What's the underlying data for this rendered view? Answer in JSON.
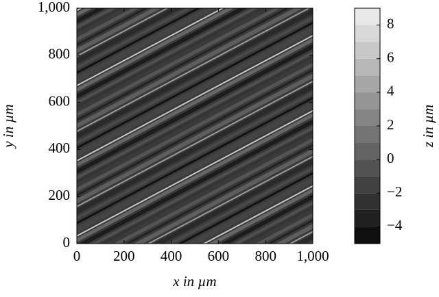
{
  "chart_data": {
    "type": "contour",
    "xlabel": "x in µm",
    "ylabel": "y in µm",
    "xlim": [
      0,
      1000
    ],
    "xticks": [
      0,
      200,
      400,
      600,
      800,
      {
        "value": 1000,
        "label": "1,000"
      }
    ],
    "ylim": [
      0,
      1000
    ],
    "yticks": [
      0,
      200,
      400,
      600,
      800,
      {
        "value": 1000,
        "label": "1,000"
      }
    ],
    "colormap": "gray",
    "colorbar": {
      "label": "z in µm",
      "zlim": [
        -5,
        9
      ],
      "levels": [
        -5,
        -4,
        -3,
        -2,
        -1,
        0,
        1,
        2,
        3,
        4,
        5,
        6,
        7,
        8,
        9
      ],
      "zticks": [
        {
          "value": -4,
          "label": "−4"
        },
        {
          "value": -2,
          "label": "−2"
        },
        0,
        2,
        4,
        6,
        8
      ]
    }
  }
}
